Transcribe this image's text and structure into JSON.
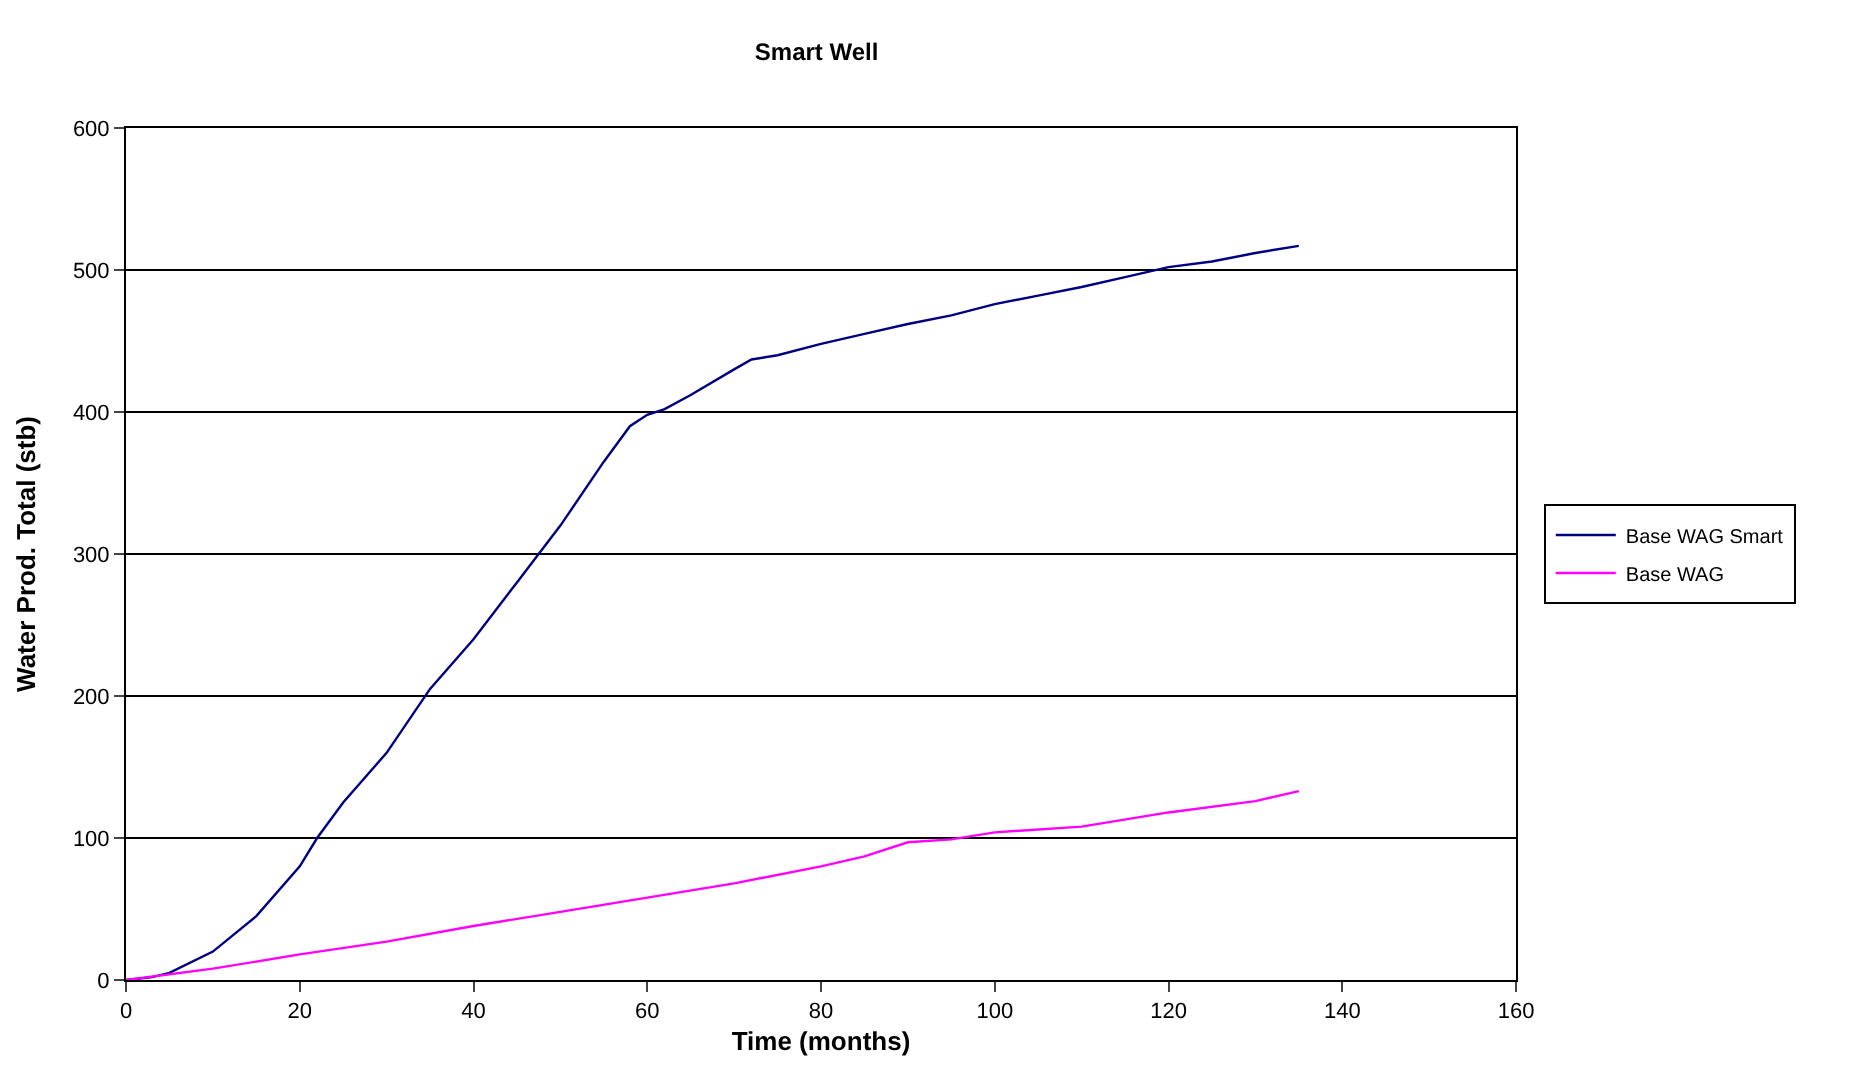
{
  "chart_data": {
    "type": "line",
    "title": "Smart Well",
    "xlabel": "Time (months)",
    "ylabel": "Water Prod. Total (stb)",
    "xlim": [
      0,
      160
    ],
    "xticks": [
      0,
      20,
      40,
      60,
      80,
      100,
      120,
      140,
      160
    ],
    "ylim": [
      0,
      600
    ],
    "yticks": [
      0,
      100,
      200,
      300,
      400,
      500,
      600
    ],
    "grid": "y",
    "legend": "right",
    "marker": "none",
    "line_style": "solid",
    "series": [
      {
        "name": "Base WAG Smart",
        "color": "#000080",
        "x": [
          0,
          3,
          5,
          10,
          15,
          20,
          22,
          25,
          30,
          35,
          40,
          45,
          50,
          55,
          58,
          60,
          62,
          65,
          70,
          72,
          75,
          80,
          85,
          90,
          95,
          100,
          105,
          110,
          115,
          120,
          125,
          130,
          135
        ],
        "values": [
          0,
          2,
          5,
          20,
          45,
          80,
          100,
          125,
          160,
          205,
          240,
          280,
          320,
          365,
          390,
          398,
          402,
          412,
          430,
          437,
          440,
          448,
          455,
          462,
          468,
          476,
          482,
          488,
          495,
          502,
          506,
          512,
          517
        ]
      },
      {
        "name": "Base WAG",
        "color": "#ff00ff",
        "x": [
          0,
          10,
          20,
          30,
          40,
          50,
          60,
          70,
          80,
          85,
          90,
          95,
          100,
          110,
          120,
          130,
          135
        ],
        "values": [
          0,
          8,
          18,
          27,
          38,
          48,
          58,
          68,
          80,
          87,
          97,
          99,
          104,
          108,
          118,
          126,
          133
        ]
      }
    ]
  }
}
